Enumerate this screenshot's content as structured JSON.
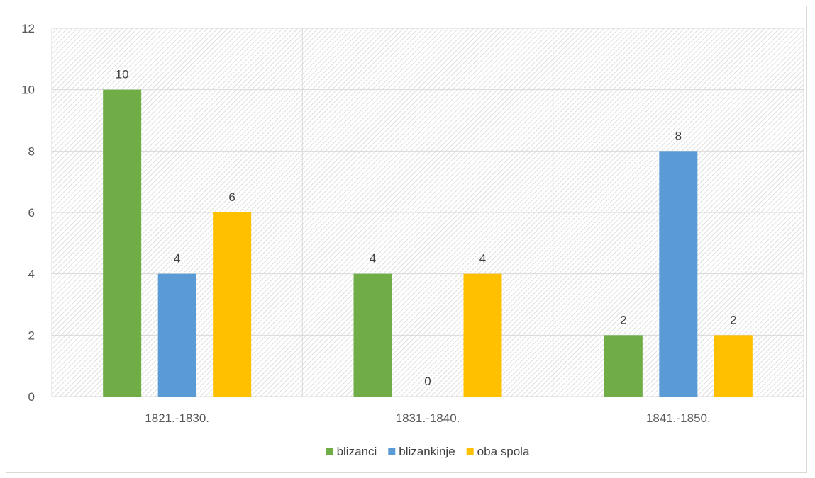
{
  "chart_data": {
    "type": "bar",
    "title": "",
    "xlabel": "",
    "ylabel": "",
    "categories": [
      "1821.-1830.",
      "1831.-1840.",
      "1841.-1850."
    ],
    "series": [
      {
        "name": "blizanci",
        "color": "#70ad47",
        "values": [
          10,
          4,
          2
        ]
      },
      {
        "name": "blizankinje",
        "color": "#5b9bd5",
        "values": [
          4,
          0,
          8
        ]
      },
      {
        "name": "oba spola",
        "color": "#ffc000",
        "values": [
          6,
          4,
          2
        ]
      }
    ],
    "ylim": [
      0,
      12
    ],
    "yticks": [
      "0",
      "2",
      "4",
      "6",
      "8",
      "10",
      "12"
    ],
    "data_labels": true,
    "grid": true,
    "plot_background": "hatched",
    "legend_position": "bottom"
  }
}
